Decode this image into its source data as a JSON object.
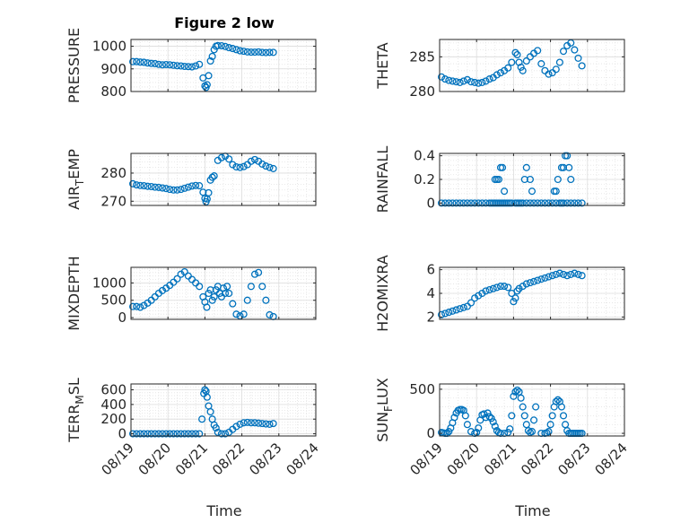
{
  "figure": {
    "title": "Figure 2 low",
    "xlabel": "Time"
  },
  "chart_data": [
    {
      "type": "scatter",
      "ylabel": "PRESSURE",
      "ylim": [
        800,
        1030
      ],
      "yticks": [
        800,
        900,
        1000
      ],
      "xlim": [
        0,
        5
      ],
      "grid": true,
      "marker_color": "#0072BD",
      "x": [
        0.05,
        0.15,
        0.25,
        0.35,
        0.45,
        0.55,
        0.65,
        0.75,
        0.85,
        0.95,
        1.05,
        1.15,
        1.25,
        1.35,
        1.45,
        1.55,
        1.65,
        1.75,
        1.85,
        1.95,
        2.0,
        2.03,
        2.06,
        2.1,
        2.15,
        2.2,
        2.25,
        2.3,
        2.35,
        2.45,
        2.55,
        2.65,
        2.75,
        2.85,
        2.95,
        3.05,
        3.15,
        3.25,
        3.35,
        3.45,
        3.55,
        3.65,
        3.75,
        3.85
      ],
      "y": [
        932,
        932,
        930,
        929,
        926,
        924,
        923,
        920,
        918,
        919,
        918,
        916,
        914,
        913,
        911,
        910,
        909,
        913,
        920,
        860,
        825,
        818,
        830,
        870,
        935,
        955,
        985,
        1000,
        1003,
        1002,
        999,
        994,
        990,
        985,
        980,
        978,
        975,
        974,
        974,
        975,
        973,
        972,
        973,
        973
      ]
    },
    {
      "type": "scatter",
      "ylabel": "THETA",
      "ylim": [
        280,
        287.5
      ],
      "yticks": [
        280,
        285
      ],
      "xlim": [
        0,
        5
      ],
      "grid": true,
      "marker_color": "#0072BD",
      "x": [
        0.05,
        0.15,
        0.25,
        0.35,
        0.45,
        0.55,
        0.65,
        0.75,
        0.85,
        0.95,
        1.05,
        1.15,
        1.25,
        1.35,
        1.45,
        1.55,
        1.65,
        1.75,
        1.85,
        1.95,
        2.05,
        2.1,
        2.15,
        2.2,
        2.25,
        2.35,
        2.45,
        2.55,
        2.65,
        2.75,
        2.85,
        2.95,
        3.05,
        3.15,
        3.25,
        3.35,
        3.45,
        3.55,
        3.65,
        3.75,
        3.85
      ],
      "y": [
        282.1,
        281.8,
        281.6,
        281.5,
        281.4,
        281.3,
        281.5,
        281.7,
        281.4,
        281.3,
        281.2,
        281.3,
        281.5,
        281.8,
        282.0,
        282.4,
        282.7,
        283.0,
        283.4,
        284.2,
        285.6,
        285.3,
        284.2,
        283.5,
        283.0,
        284.4,
        285.0,
        285.5,
        285.9,
        284.0,
        283.0,
        282.5,
        282.7,
        283.2,
        284.2,
        285.8,
        286.6,
        287.0,
        286.0,
        284.8,
        283.7
      ]
    },
    {
      "type": "scatter",
      "ylabel": "AIR_TEMP",
      "ylim": [
        268.5,
        287
      ],
      "yticks": [
        270,
        280
      ],
      "xlim": [
        0,
        5
      ],
      "grid": true,
      "marker_color": "#0072BD",
      "x": [
        0.05,
        0.15,
        0.25,
        0.35,
        0.45,
        0.55,
        0.65,
        0.75,
        0.85,
        0.95,
        1.05,
        1.15,
        1.25,
        1.35,
        1.45,
        1.55,
        1.65,
        1.75,
        1.85,
        1.95,
        2.0,
        2.03,
        2.06,
        2.1,
        2.15,
        2.2,
        2.25,
        2.35,
        2.45,
        2.55,
        2.65,
        2.75,
        2.85,
        2.95,
        3.05,
        3.15,
        3.25,
        3.35,
        3.45,
        3.55,
        3.65,
        3.75,
        3.85
      ],
      "y": [
        276.2,
        275.8,
        275.6,
        275.5,
        275.3,
        275.2,
        275.0,
        274.9,
        274.7,
        274.5,
        274.2,
        274.0,
        274.0,
        274.2,
        274.6,
        275.0,
        275.4,
        275.6,
        275.5,
        273.2,
        271.0,
        269.8,
        270.8,
        273.0,
        277.5,
        278.5,
        279.0,
        284.5,
        285.5,
        286.0,
        285.0,
        283.0,
        282.2,
        282.0,
        282.3,
        283.0,
        284.2,
        284.8,
        284.2,
        283.2,
        282.5,
        282.0,
        281.6
      ]
    },
    {
      "type": "scatter",
      "ylabel": "RAINFALL",
      "ylim": [
        -0.02,
        0.42
      ],
      "yticks": [
        0,
        0.2,
        0.4
      ],
      "xlim": [
        0,
        5
      ],
      "grid": true,
      "marker_color": "#0072BD",
      "x": [
        0.05,
        0.15,
        0.25,
        0.35,
        0.45,
        0.55,
        0.65,
        0.75,
        0.85,
        0.95,
        1.05,
        1.15,
        1.25,
        1.35,
        1.4,
        1.45,
        1.5,
        1.55,
        1.6,
        1.65,
        1.7,
        1.75,
        1.8,
        1.85,
        1.9,
        1.95,
        2.05,
        2.1,
        2.15,
        2.2,
        2.25,
        2.35,
        2.45,
        2.55,
        2.65,
        2.75,
        2.85,
        2.95,
        3.05,
        3.15,
        3.25,
        3.3,
        3.35,
        3.45,
        3.55,
        3.65,
        3.75,
        3.85,
        1.5,
        1.55,
        1.6,
        1.65,
        1.7,
        1.75,
        2.3,
        2.35,
        2.45,
        2.5,
        3.1,
        3.15,
        3.2,
        3.3,
        3.35,
        3.4,
        3.45,
        3.5,
        3.55
      ],
      "y": [
        0,
        0,
        0,
        0,
        0,
        0,
        0,
        0,
        0,
        0,
        0,
        0,
        0,
        0,
        0,
        0,
        0,
        0,
        0,
        0,
        0,
        0,
        0,
        0,
        0,
        0,
        0,
        0,
        0,
        0,
        0,
        0,
        0,
        0,
        0,
        0,
        0,
        0,
        0,
        0,
        0,
        0,
        0,
        0,
        0,
        0,
        0,
        0,
        0.2,
        0.2,
        0.2,
        0.3,
        0.3,
        0.1,
        0.2,
        0.3,
        0.2,
        0.1,
        0.1,
        0.1,
        0.2,
        0.3,
        0.3,
        0.4,
        0.4,
        0.3,
        0.2
      ]
    },
    {
      "type": "scatter",
      "ylabel": "MIXDEPTH",
      "ylim": [
        -50,
        1450
      ],
      "yticks": [
        0,
        500,
        1000
      ],
      "xlim": [
        0,
        5
      ],
      "grid": true,
      "marker_color": "#0072BD",
      "x": [
        0.05,
        0.15,
        0.25,
        0.35,
        0.45,
        0.55,
        0.65,
        0.75,
        0.85,
        0.95,
        1.05,
        1.15,
        1.25,
        1.35,
        1.45,
        1.55,
        1.65,
        1.75,
        1.85,
        1.95,
        2.0,
        2.05,
        2.1,
        2.15,
        2.2,
        2.25,
        2.3,
        2.35,
        2.4,
        2.45,
        2.5,
        2.55,
        2.6,
        2.65,
        2.75,
        2.85,
        2.95,
        3.05,
        3.15,
        3.25,
        3.35,
        3.45,
        3.55,
        3.65,
        3.75,
        3.85
      ],
      "y": [
        320,
        320,
        300,
        350,
        420,
        500,
        600,
        700,
        780,
        850,
        930,
        1020,
        1120,
        1250,
        1320,
        1200,
        1100,
        1000,
        900,
        600,
        450,
        300,
        700,
        800,
        500,
        600,
        800,
        900,
        700,
        600,
        850,
        700,
        900,
        700,
        400,
        100,
        50,
        100,
        500,
        900,
        1250,
        1300,
        900,
        500,
        80,
        30
      ]
    },
    {
      "type": "scatter",
      "ylabel": "H2OMIXRA",
      "ylim": [
        1.8,
        6.2
      ],
      "yticks": [
        2,
        4,
        6
      ],
      "xlim": [
        0,
        5
      ],
      "grid": true,
      "marker_color": "#0072BD",
      "x": [
        0.05,
        0.15,
        0.25,
        0.35,
        0.45,
        0.55,
        0.65,
        0.75,
        0.85,
        0.95,
        1.05,
        1.15,
        1.25,
        1.35,
        1.45,
        1.55,
        1.65,
        1.75,
        1.85,
        1.95,
        2.0,
        2.05,
        2.1,
        2.15,
        2.25,
        2.35,
        2.45,
        2.55,
        2.65,
        2.75,
        2.85,
        2.95,
        3.05,
        3.15,
        3.25,
        3.35,
        3.45,
        3.55,
        3.65,
        3.75,
        3.85
      ],
      "y": [
        2.2,
        2.3,
        2.4,
        2.5,
        2.6,
        2.7,
        2.8,
        2.9,
        3.2,
        3.6,
        3.8,
        4.0,
        4.2,
        4.3,
        4.4,
        4.5,
        4.6,
        4.6,
        4.5,
        4.0,
        3.3,
        3.6,
        4.2,
        4.4,
        4.6,
        4.8,
        4.9,
        5.0,
        5.1,
        5.2,
        5.3,
        5.4,
        5.5,
        5.6,
        5.7,
        5.6,
        5.5,
        5.6,
        5.7,
        5.6,
        5.5
      ]
    },
    {
      "type": "scatter",
      "ylabel": "TERR_MSL",
      "ylim": [
        -30,
        680
      ],
      "yticks": [
        0,
        200,
        400,
        600
      ],
      "xlim": [
        0,
        5
      ],
      "grid": true,
      "marker_color": "#0072BD",
      "x": [
        0.05,
        0.15,
        0.25,
        0.35,
        0.45,
        0.55,
        0.65,
        0.75,
        0.85,
        0.95,
        1.05,
        1.15,
        1.25,
        1.35,
        1.45,
        1.55,
        1.65,
        1.75,
        1.85,
        1.92,
        1.97,
        2.0,
        2.03,
        2.06,
        2.1,
        2.15,
        2.2,
        2.25,
        2.3,
        2.35,
        2.45,
        2.55,
        2.65,
        2.75,
        2.85,
        2.95,
        3.05,
        3.15,
        3.25,
        3.35,
        3.45,
        3.55,
        3.65,
        3.75,
        3.85
      ],
      "y": [
        0,
        0,
        0,
        0,
        0,
        0,
        0,
        0,
        0,
        0,
        0,
        0,
        0,
        0,
        0,
        0,
        0,
        0,
        0,
        200,
        550,
        600,
        580,
        500,
        380,
        300,
        200,
        120,
        80,
        20,
        0,
        0,
        20,
        60,
        100,
        130,
        150,
        155,
        150,
        150,
        145,
        140,
        135,
        130,
        140
      ]
    },
    {
      "type": "scatter",
      "ylabel": "SUN_FLUX",
      "ylim": [
        -30,
        560
      ],
      "yticks": [
        0,
        500
      ],
      "xlim": [
        0,
        5
      ],
      "grid": true,
      "marker_color": "#0072BD",
      "x": [
        0.05,
        0.1,
        0.15,
        0.2,
        0.25,
        0.3,
        0.35,
        0.4,
        0.45,
        0.5,
        0.55,
        0.6,
        0.65,
        0.7,
        0.75,
        0.85,
        0.95,
        1.0,
        1.05,
        1.1,
        1.15,
        1.2,
        1.25,
        1.3,
        1.35,
        1.4,
        1.45,
        1.5,
        1.55,
        1.6,
        1.65,
        1.75,
        1.85,
        1.9,
        1.95,
        2.0,
        2.05,
        2.1,
        2.15,
        2.2,
        2.25,
        2.3,
        2.35,
        2.4,
        2.45,
        2.5,
        2.55,
        2.6,
        2.75,
        2.85,
        2.9,
        2.95,
        3.0,
        3.05,
        3.1,
        3.15,
        3.2,
        3.25,
        3.3,
        3.35,
        3.4,
        3.45,
        3.5,
        3.55,
        3.6,
        3.65,
        3.7,
        3.75,
        3.8,
        3.85
      ],
      "y": [
        10,
        5,
        0,
        0,
        20,
        60,
        120,
        180,
        230,
        260,
        270,
        270,
        260,
        200,
        100,
        20,
        0,
        10,
        60,
        150,
        210,
        220,
        180,
        230,
        190,
        170,
        130,
        80,
        30,
        10,
        0,
        0,
        10,
        50,
        200,
        420,
        470,
        490,
        470,
        400,
        300,
        200,
        100,
        30,
        10,
        20,
        150,
        300,
        0,
        0,
        5,
        20,
        100,
        200,
        300,
        360,
        380,
        360,
        300,
        200,
        100,
        30,
        0,
        0,
        0,
        0,
        0,
        0,
        0,
        0
      ]
    }
  ],
  "xticks": [
    "08/19",
    "08/20",
    "08/21",
    "08/22",
    "08/23",
    "08/24"
  ]
}
